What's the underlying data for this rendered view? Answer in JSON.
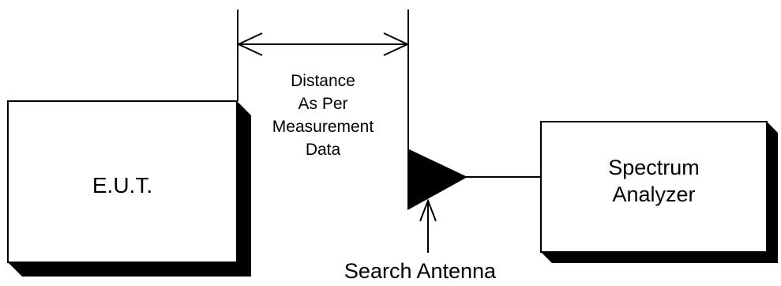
{
  "eut": {
    "label": "E.U.T."
  },
  "spectrum_analyzer": {
    "line1": "Spectrum",
    "line2": "Analyzer"
  },
  "distance": {
    "line1": "Distance",
    "line2": "As Per",
    "line3": "Measurement",
    "line4": "Data"
  },
  "antenna": {
    "label": "Search Antenna"
  },
  "colors": {
    "ink": "#000000",
    "shadow": "#000000",
    "background": "#ffffff"
  }
}
